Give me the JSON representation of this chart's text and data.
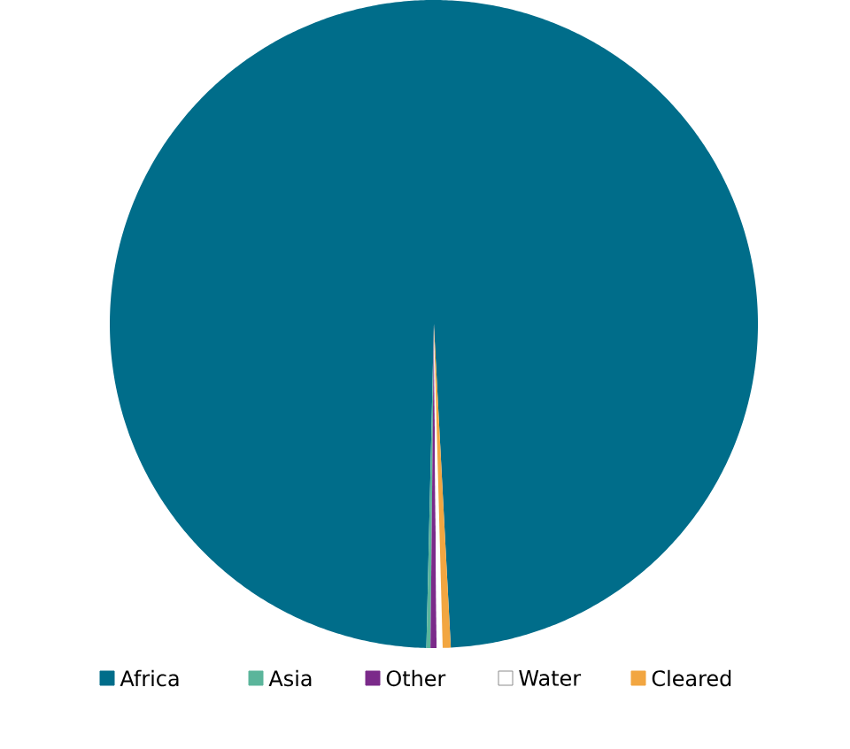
{
  "chart_data": {
    "type": "pie",
    "categories": [
      "Africa",
      "Asia",
      "Other",
      "Water",
      "Cleared"
    ],
    "values": [
      98.8,
      0.2,
      0.3,
      0.3,
      0.4
    ],
    "colors": [
      "#006d8a",
      "#5bb59b",
      "#7b2a8a",
      "#ffffff",
      "#f2a641"
    ],
    "legend": "bottom"
  }
}
